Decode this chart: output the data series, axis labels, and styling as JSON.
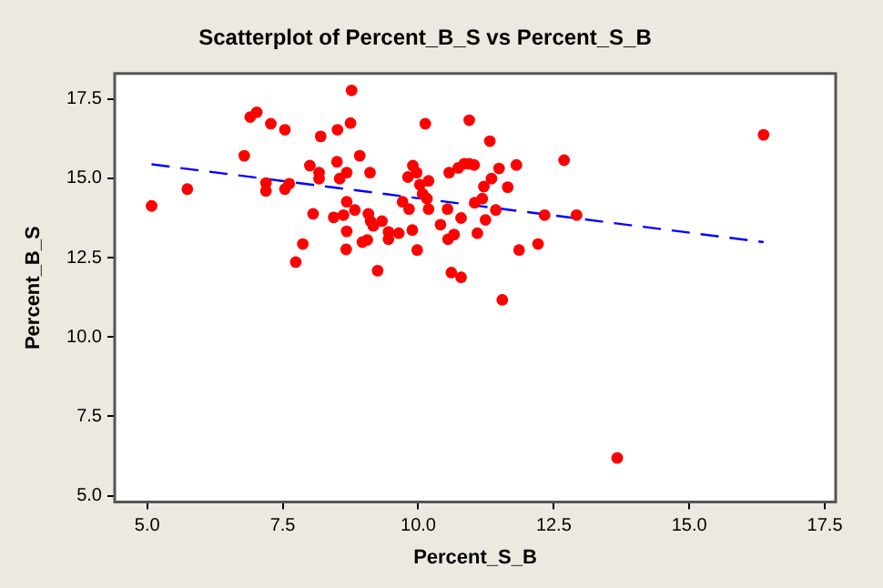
{
  "chart_data": {
    "type": "scatter",
    "title": "Scatterplot of Percent_B_S vs Percent_S_B",
    "xlabel": "Percent_S_B",
    "ylabel": "Percent_B_S",
    "xlim": [
      4.4,
      17.7
    ],
    "xticks": [
      {
        "value": 5,
        "label": "5.0"
      },
      {
        "value": 7.5,
        "label": "7.5"
      },
      {
        "value": 10,
        "label": "10.0"
      },
      {
        "value": 12.5,
        "label": "12.5"
      },
      {
        "value": 15,
        "label": "15.0"
      },
      {
        "value": 17.5,
        "label": "17.5"
      }
    ],
    "ylim": [
      4.8,
      18.3
    ],
    "yticks": [
      {
        "value": 5,
        "label": "5.0"
      },
      {
        "value": 7.5,
        "label": "7.5"
      },
      {
        "value": 10,
        "label": "10.0"
      },
      {
        "value": 12.5,
        "label": "12.5"
      },
      {
        "value": 15,
        "label": "15.0"
      },
      {
        "value": 17.5,
        "label": "17.5"
      }
    ],
    "grid": false,
    "legend": false,
    "marker": "circle",
    "series": [
      {
        "color": "#ff0000",
        "x": [
          5.08,
          5.74,
          6.79,
          6.9,
          7.02,
          7.28,
          7.54,
          7.19,
          7.19,
          7.54,
          7.62,
          7.74,
          7.87,
          8.06,
          8.0,
          8.17,
          8.17,
          8.2,
          8.51,
          8.75,
          8.77,
          8.5,
          8.55,
          8.68,
          8.92,
          9.11,
          8.68,
          8.62,
          8.44,
          8.83,
          8.68,
          8.67,
          9.08,
          9.12,
          9.17,
          9.33,
          8.97,
          9.06,
          9.45,
          9.45,
          9.64,
          9.25,
          9.89,
          9.98,
          9.71,
          9.83,
          9.81,
          9.9,
          9.97,
          10.03,
          10.13,
          10.19,
          10.41,
          10.54,
          10.57,
          10.61,
          10.79,
          10.94,
          11.32,
          10.74,
          10.85,
          10.94,
          11.03,
          11.49,
          11.81,
          11.35,
          11.21,
          11.65,
          11.18,
          11.04,
          11.43,
          10.79,
          11.24,
          11.09,
          10.66,
          10.55,
          11.86,
          12.21,
          12.33,
          12.92,
          12.69,
          11.55,
          16.37,
          13.67,
          10.19,
          10.08,
          10.16
        ],
        "values": [
          14.13,
          14.66,
          15.71,
          16.93,
          17.08,
          16.72,
          16.53,
          14.85,
          14.6,
          14.66,
          14.83,
          12.36,
          12.93,
          13.88,
          15.4,
          15.18,
          14.99,
          16.32,
          16.53,
          16.74,
          17.77,
          15.52,
          14.99,
          15.18,
          15.71,
          15.18,
          14.26,
          13.84,
          13.77,
          14.0,
          13.33,
          12.76,
          13.88,
          13.65,
          13.5,
          13.65,
          12.99,
          13.06,
          13.31,
          13.08,
          13.27,
          12.09,
          13.37,
          12.74,
          14.26,
          14.03,
          15.04,
          15.4,
          15.18,
          14.8,
          16.72,
          14.03,
          13.54,
          14.03,
          15.18,
          12.03,
          11.88,
          16.83,
          16.17,
          15.33,
          15.46,
          15.46,
          15.42,
          15.31,
          15.42,
          14.99,
          14.74,
          14.72,
          14.36,
          14.23,
          14.0,
          13.75,
          13.69,
          13.27,
          13.23,
          13.08,
          12.74,
          12.93,
          13.84,
          13.84,
          15.57,
          11.17,
          16.37,
          6.19,
          14.92,
          14.51,
          14.36
        ]
      },
      {
        "type": "line",
        "color": "#0000ff",
        "line_style": "dashed",
        "marker": "none",
        "x": [
          5.08,
          16.37
        ],
        "values": [
          15.44,
          12.99
        ]
      }
    ]
  }
}
